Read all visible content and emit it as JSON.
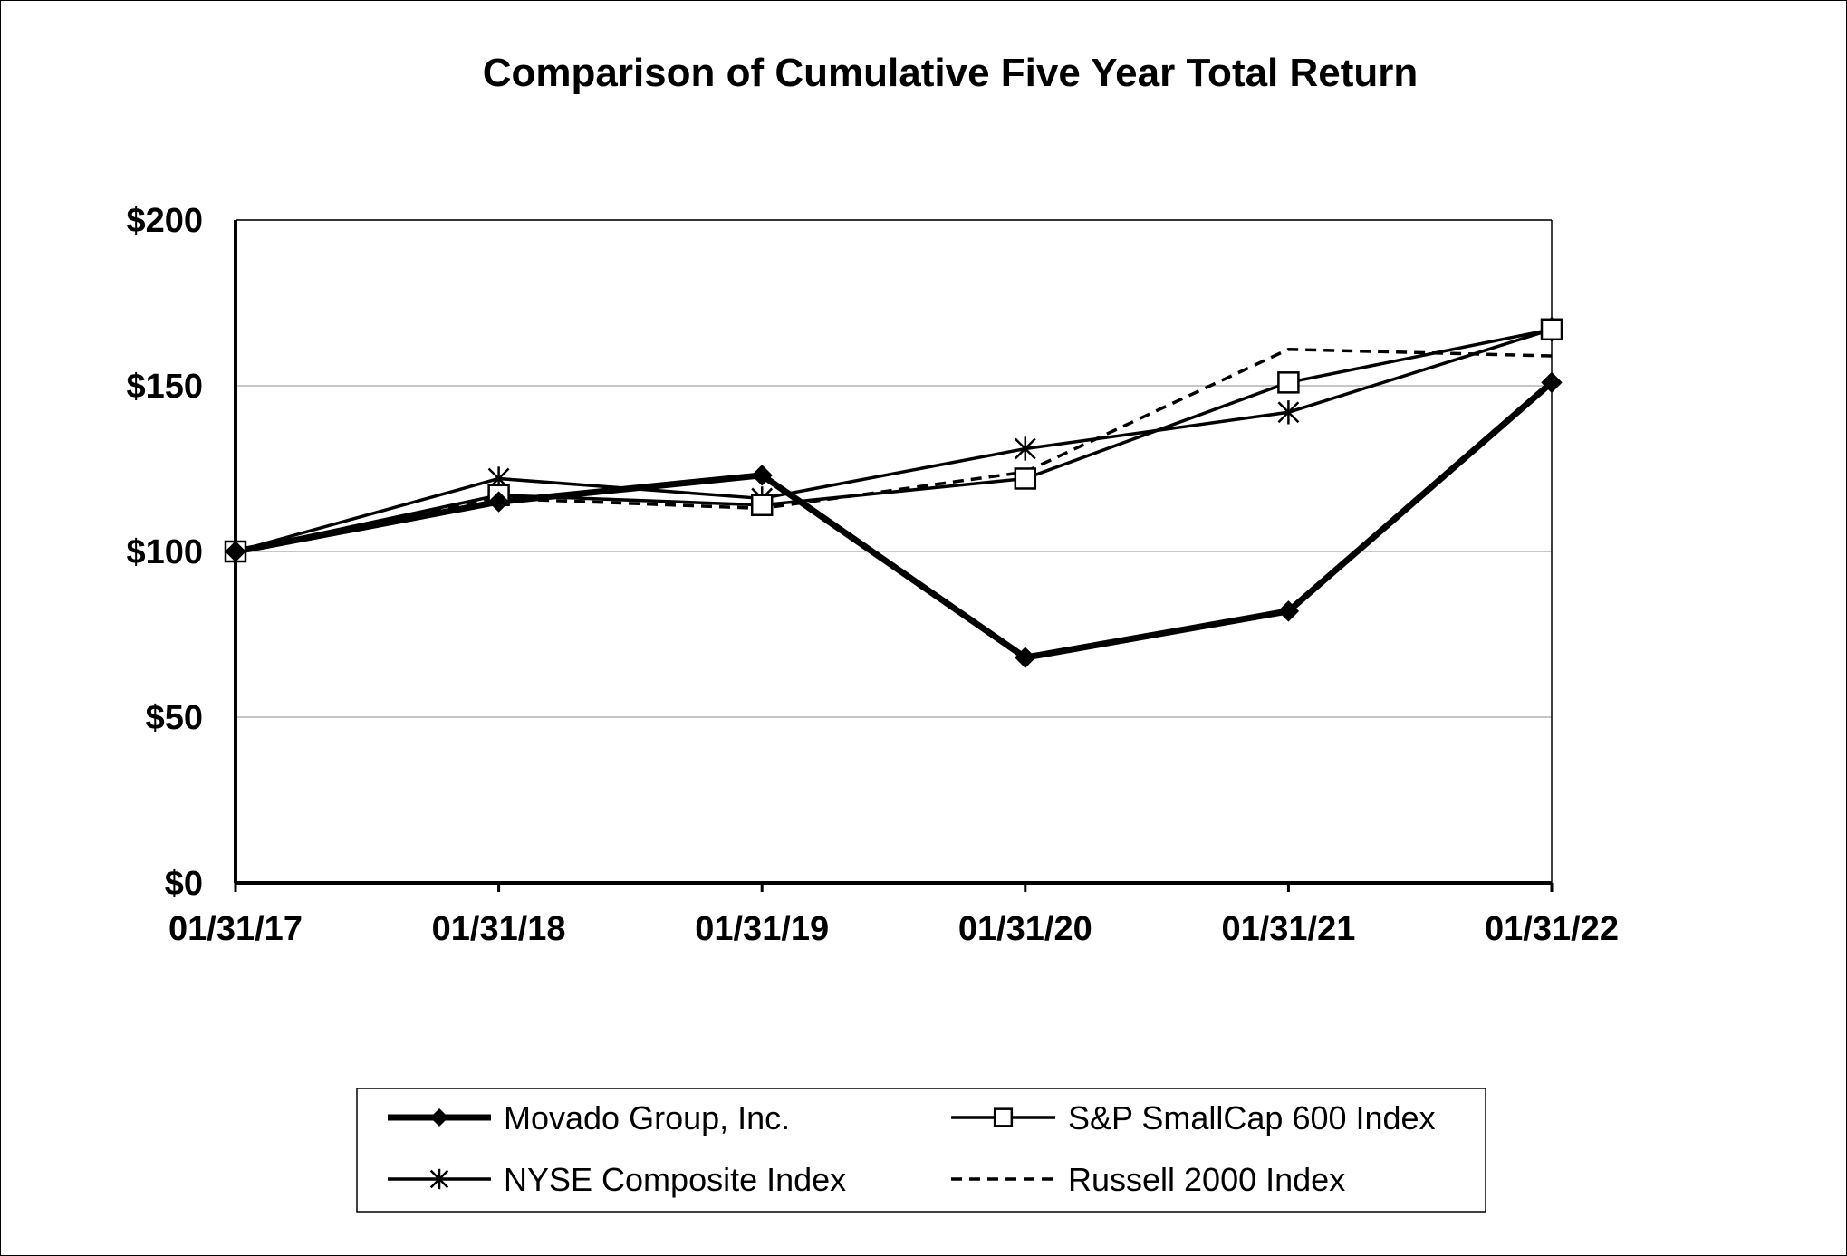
{
  "chart_data": {
    "type": "line",
    "title": "Comparison of Cumulative Five Year Total Return",
    "xlabel": "",
    "ylabel": "",
    "categories": [
      "01/31/17",
      "01/31/18",
      "01/31/19",
      "01/31/20",
      "01/31/21",
      "01/31/22"
    ],
    "y_ticks": [
      "$0",
      "$50",
      "$100",
      "$150",
      "$200"
    ],
    "y_tick_values": [
      0,
      50,
      100,
      150,
      200
    ],
    "ylim": [
      0,
      200
    ],
    "grid": true,
    "legend_position": "bottom",
    "series": [
      {
        "name": "Movado Group, Inc.",
        "values": [
          100,
          115,
          123,
          68,
          82,
          151
        ],
        "marker": "diamond",
        "line": "thick-solid",
        "color": "#000000"
      },
      {
        "name": "S&P SmallCap 600 Index",
        "values": [
          100,
          117,
          114,
          122,
          151,
          167
        ],
        "marker": "square",
        "line": "solid",
        "color": "#000000"
      },
      {
        "name": "NYSE Composite Index",
        "values": [
          100,
          122,
          116,
          131,
          142,
          167
        ],
        "marker": "asterisk",
        "line": "solid",
        "color": "#000000"
      },
      {
        "name": "Russell 2000 Index",
        "values": [
          100,
          116,
          113,
          124,
          161,
          159
        ],
        "marker": "none",
        "line": "dashed",
        "color": "#000000"
      }
    ]
  }
}
